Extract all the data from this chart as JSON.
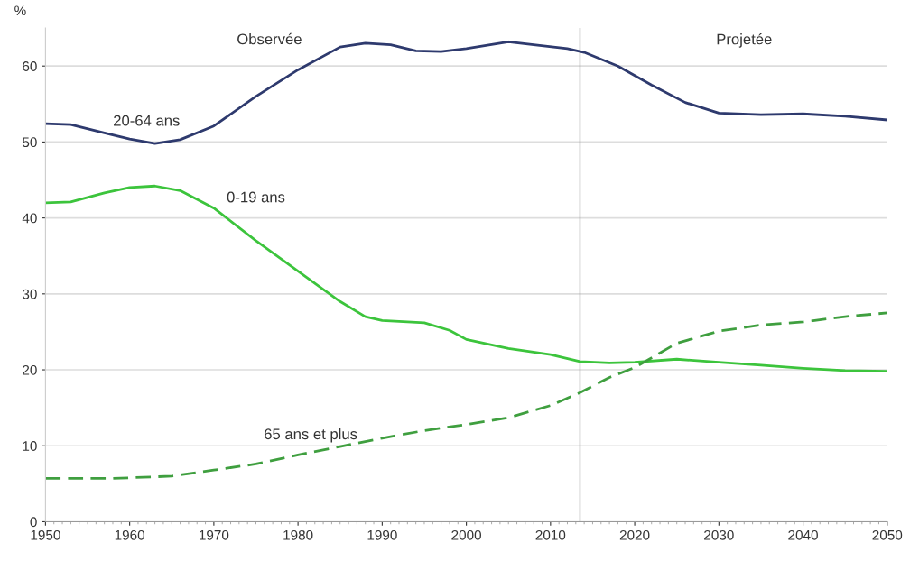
{
  "chart_data": {
    "type": "line",
    "ylabel": "%",
    "xlim": [
      1950,
      2050
    ],
    "xticks": [
      1950,
      1960,
      1970,
      1980,
      1990,
      2000,
      2010,
      2020,
      2030,
      2040,
      2050
    ],
    "ylim": [
      0,
      65
    ],
    "yticks": [
      0,
      10,
      20,
      30,
      40,
      50,
      60
    ],
    "grid": "y",
    "marker": "none",
    "series": [
      {
        "name": "20-64 ans",
        "color": "#2e3a6e",
        "line_style": "solid",
        "x": [
          1950,
          1953,
          1957,
          1960,
          1963,
          1966,
          1970,
          1975,
          1980,
          1985,
          1988,
          1991,
          1994,
          1997,
          2000,
          2005,
          2008,
          2012,
          2014,
          2018,
          2022,
          2026,
          2030,
          2035,
          2040,
          2045,
          2050
        ],
        "values": [
          52.4,
          52.3,
          51.2,
          50.4,
          49.8,
          50.3,
          52.1,
          56,
          59.5,
          62.5,
          63,
          62.8,
          62,
          61.9,
          62.3,
          63.2,
          62.8,
          62.3,
          61.8,
          60,
          57.5,
          55.2,
          53.8,
          53.6,
          53.7,
          53.4,
          52.9
        ]
      },
      {
        "name": "0-19 ans",
        "color": "#3cc43c",
        "line_style": "solid",
        "x": [
          1950,
          1953,
          1957,
          1960,
          1963,
          1966,
          1970,
          1975,
          1980,
          1985,
          1988,
          1990,
          1995,
          1998,
          2000,
          2005,
          2010,
          2013.5,
          2017,
          2020,
          2025,
          2030,
          2035,
          2040,
          2045,
          2050
        ],
        "values": [
          42,
          42.1,
          43.3,
          44,
          44.2,
          43.6,
          41.3,
          37,
          33,
          29,
          27,
          26.5,
          26.2,
          25.2,
          24,
          22.8,
          22,
          21.1,
          20.9,
          21,
          21.4,
          21,
          20.6,
          20.2,
          19.9,
          19.8
        ]
      },
      {
        "name": "65 ans et plus",
        "color": "#3f9f3f",
        "line_style": "dashed",
        "x": [
          1950,
          1958,
          1965,
          1970,
          1975,
          1980,
          1985,
          1990,
          1995,
          2000,
          2005,
          2010,
          2013.5,
          2017,
          2020,
          2025,
          2030,
          2035,
          2040,
          2045,
          2050
        ],
        "values": [
          5.7,
          5.7,
          6,
          6.8,
          7.6,
          8.8,
          9.9,
          11,
          12,
          12.8,
          13.7,
          15.3,
          17,
          19,
          20.3,
          23.5,
          25.1,
          25.9,
          26.3,
          27,
          27.5
        ]
      }
    ],
    "ref_lines": [
      {
        "axis": "x",
        "value": 2013.5,
        "color": "#999999",
        "line_style": "solid"
      }
    ],
    "annotations": [
      "Observée",
      "Projetée"
    ]
  }
}
